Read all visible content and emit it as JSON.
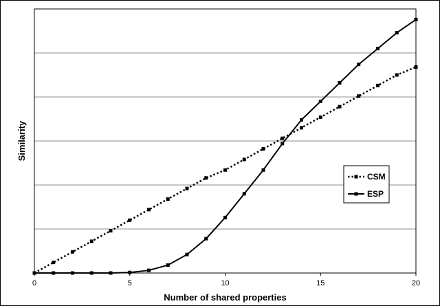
{
  "chart_data": {
    "type": "line",
    "xlabel": "Number of shared properties",
    "ylabel": "Similarity",
    "xlim": [
      0,
      20
    ],
    "ylim": [
      0,
      1
    ],
    "x_ticks": [
      "0",
      "5",
      "10",
      "15",
      "20"
    ],
    "y_tick_labels_shown": false,
    "horizontal_grid": true,
    "legend": {
      "placement": "right"
    },
    "series": [
      {
        "name": "CSM",
        "line_style": "dotted",
        "marker": "square",
        "color": "#000000",
        "x": [
          0,
          1,
          2,
          3,
          4,
          5,
          6,
          7,
          8,
          9,
          10,
          11,
          12,
          13,
          14,
          15,
          16,
          17,
          18,
          19,
          20
        ],
        "y": [
          0,
          0.04,
          0.08,
          0.12,
          0.16,
          0.2,
          0.24,
          0.28,
          0.32,
          0.36,
          0.39,
          0.43,
          0.47,
          0.51,
          0.55,
          0.59,
          0.63,
          0.67,
          0.71,
          0.75,
          0.78
        ]
      },
      {
        "name": "ESP",
        "line_style": "solid",
        "marker": "square",
        "color": "#000000",
        "x": [
          0,
          1,
          2,
          3,
          4,
          5,
          6,
          7,
          8,
          9,
          10,
          11,
          12,
          13,
          14,
          15,
          16,
          17,
          18,
          19,
          20
        ],
        "y": [
          0,
          0,
          0,
          0,
          0,
          0.002,
          0.01,
          0.03,
          0.07,
          0.13,
          0.21,
          0.3,
          0.39,
          0.49,
          0.58,
          0.65,
          0.72,
          0.79,
          0.85,
          0.91,
          0.96
        ]
      }
    ]
  }
}
